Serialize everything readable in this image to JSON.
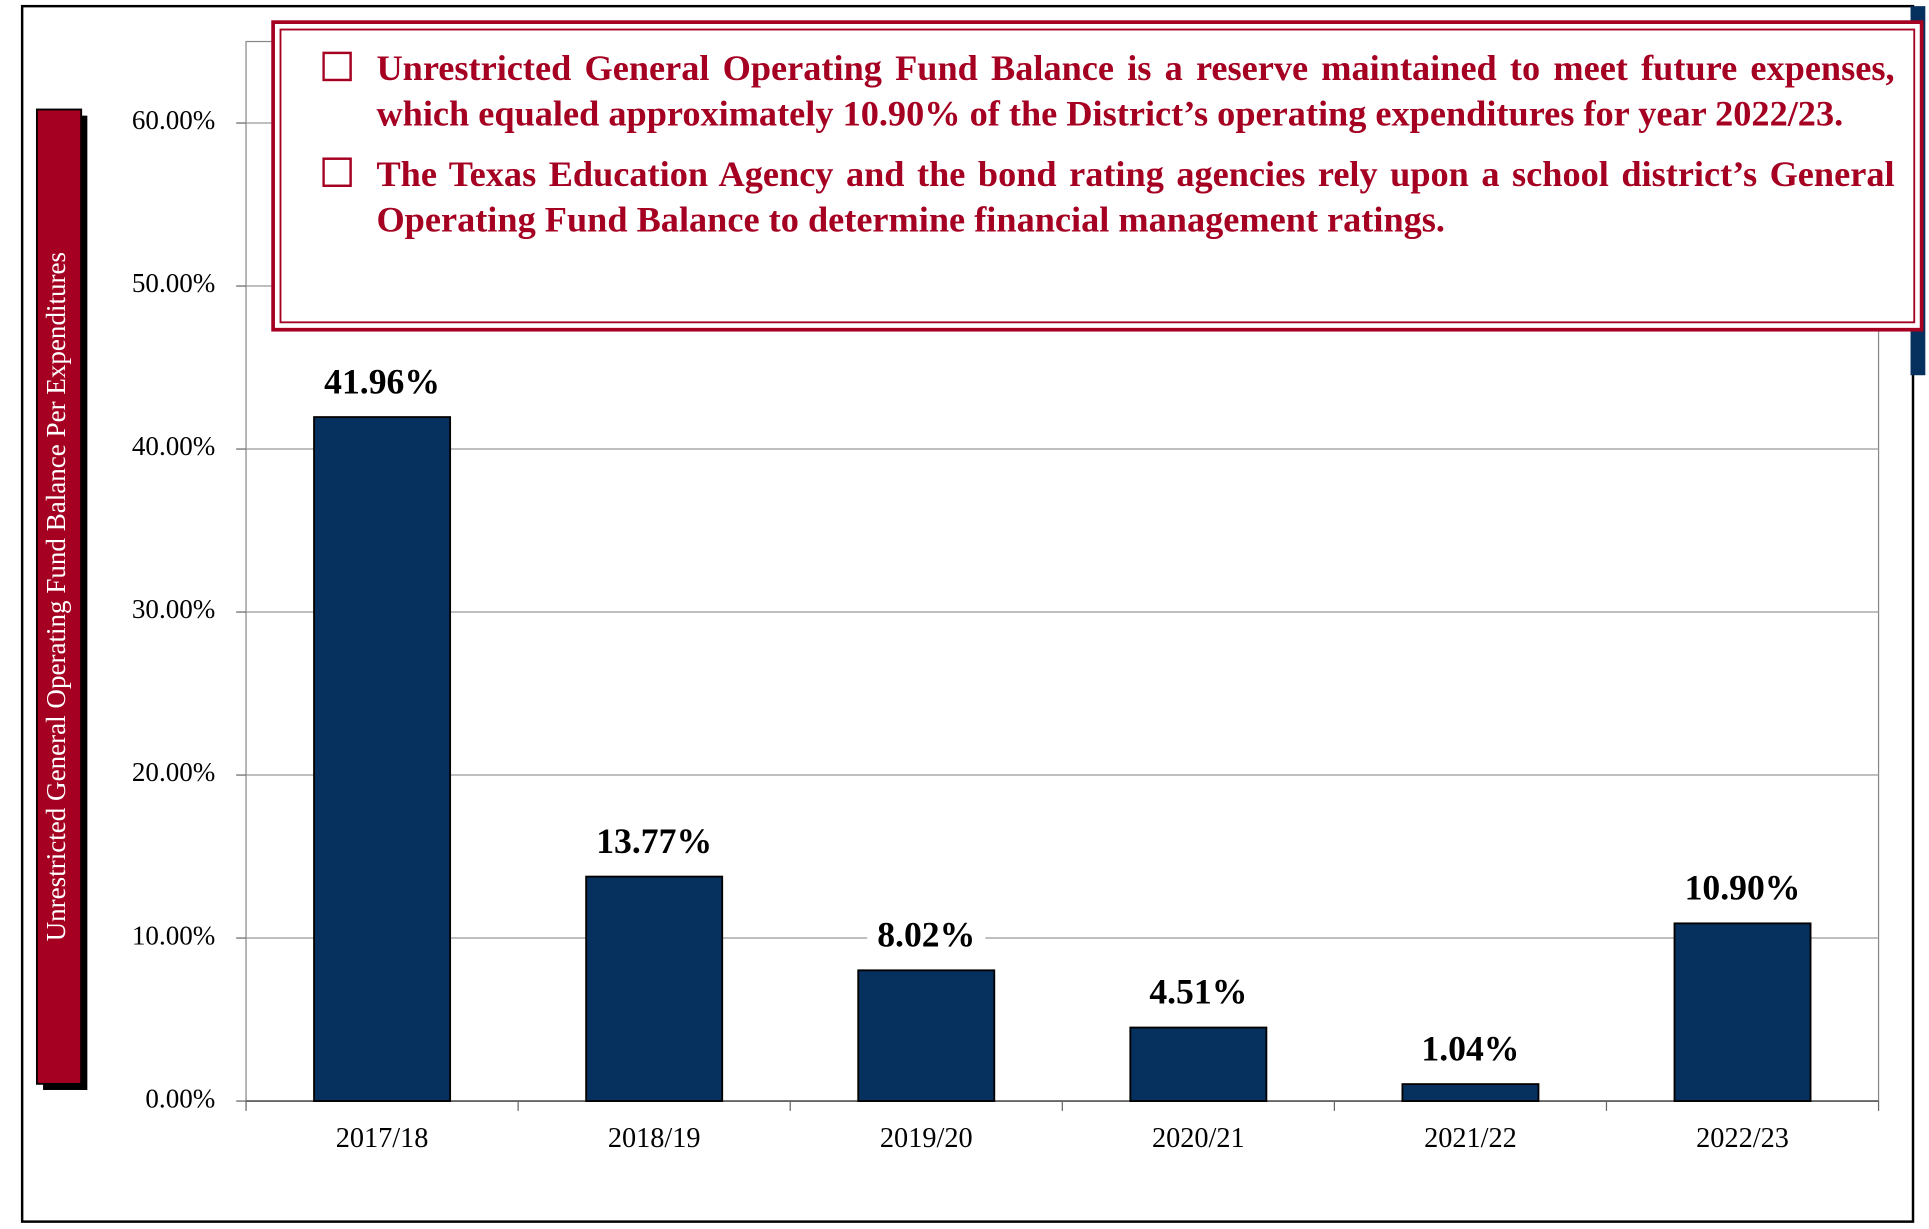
{
  "chart_data": {
    "type": "bar",
    "ylabel": "Unrestricted General Operating Fund Balance Per Expenditures",
    "annotations": [
      "Unrestricted General Operating Fund Balance is a reserve maintained to meet future expenses, which equaled approximately 10.90% of the District’s operating expenditures for year 2022/23.",
      "The Texas Education Agency and the bond rating agencies rely upon a school district’s General Operating Fund Balance to determine financial management ratings."
    ],
    "categories": [
      "2017/18",
      "2018/19",
      "2019/20",
      "2020/21",
      "2021/22",
      "2022/23"
    ],
    "values": [
      41.96,
      13.77,
      8.02,
      4.51,
      1.04,
      10.9
    ],
    "value_labels": [
      "41.96%",
      "13.77%",
      "8.02%",
      "4.51%",
      "1.04%",
      "10.90%"
    ],
    "color": "#06305e",
    "ylim": [
      0,
      65
    ],
    "yticks": [
      {
        "value": 0,
        "label": "0.00%"
      },
      {
        "value": 10,
        "label": "10.00%"
      },
      {
        "value": 20,
        "label": "20.00%"
      },
      {
        "value": 30,
        "label": "30.00%"
      },
      {
        "value": 40,
        "label": "40.00%"
      },
      {
        "value": 50,
        "label": "50.00%"
      },
      {
        "value": 60,
        "label": "60.00%"
      }
    ],
    "grid": true
  }
}
